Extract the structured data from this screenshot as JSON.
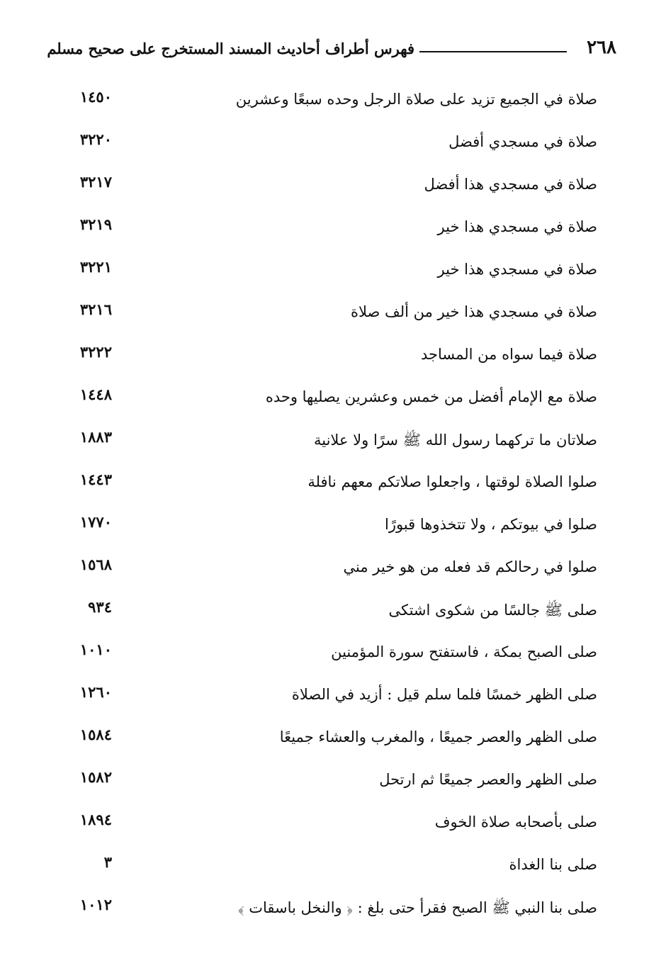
{
  "header": {
    "page_number": "٢٦٨",
    "title": "فهرس أطراف أحاديث المسند المستخرج على صحيح مسلم"
  },
  "entries": [
    {
      "text": "صلاة في الجميع تزيد على صلاة الرجل وحده سبعًا وعشرين",
      "number": "١٤٥٠"
    },
    {
      "text": "صلاة في مسجدي أفضل",
      "number": "٣٢٢٠"
    },
    {
      "text": "صلاة في مسجدي هذا أفضل",
      "number": "٣٢١٧"
    },
    {
      "text": "صلاة في مسجدي هذا خير",
      "number": "٣٢١٩"
    },
    {
      "text": "صلاة في مسجدي هذا خير",
      "number": "٣٢٢١"
    },
    {
      "text": "صلاة في مسجدي هذا خير من ألف صلاة",
      "number": "٣٢١٦"
    },
    {
      "text": "صلاة فيما سواه من المساجد",
      "number": "٣٢٢٢"
    },
    {
      "text": "صلاة مع الإمام أفضل من خمس وعشرين يصليها وحده",
      "number": "١٤٤٨"
    },
    {
      "text": "صلاتان ما تركهما رسول الله ﷺ سرًا ولا علانية",
      "number": "١٨٨٣"
    },
    {
      "text": "صلوا الصلاة لوقتها ، واجعلوا صلاتكم معهم نافلة",
      "number": "١٤٤٣"
    },
    {
      "text": "صلوا في بيوتكم ، ولا تتخذوها قبورًا",
      "number": "١٧٧٠"
    },
    {
      "text": "صلوا في رحالكم قد فعله من هو خير مني",
      "number": "١٥٦٨"
    },
    {
      "text": "صلى ﷺ جالسًا من شكوى اشتكى",
      "number": "٩٣٤"
    },
    {
      "text": "صلى الصبح بمكة ، فاستفتح سورة المؤمنين",
      "number": "١٠١٠"
    },
    {
      "text": "صلى الظهر خمسًا فلما سلم قيل : أزيد في الصلاة",
      "number": "١٢٦٠"
    },
    {
      "text": "صلى الظهر والعصر جميعًا ، والمغرب والعشاء جميعًا",
      "number": "١٥٨٤"
    },
    {
      "text": "صلى الظهر والعصر جميعًا ثم ارتحل",
      "number": "١٥٨٢"
    },
    {
      "text": "صلى بأصحابه صلاة الخوف",
      "number": "١٨٩٤"
    },
    {
      "text": "صلى بنا الغداة",
      "number": "٣"
    },
    {
      "text": "صلى بنا النبي ﷺ الصبح فقرأ حتى بلغ : ﴿ والنخل باسقات ﴾",
      "number": "١٠١٢"
    }
  ]
}
